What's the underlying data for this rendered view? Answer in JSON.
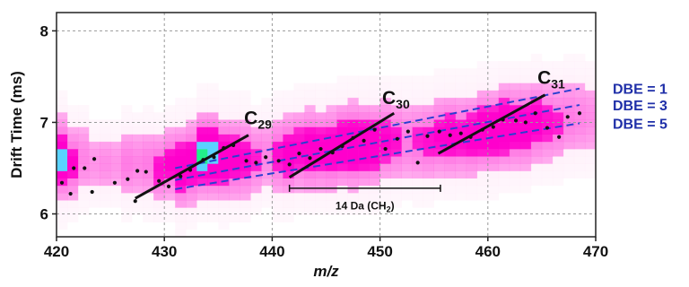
{
  "chart_data": {
    "type": "scatter",
    "title": "",
    "xlabel": "m/z",
    "ylabel": "Drift Time (ms)",
    "xlim": [
      420,
      470
    ],
    "ylim": [
      5.75,
      8.2
    ],
    "xticks": [
      420,
      430,
      440,
      450,
      460,
      470
    ],
    "yticks": [
      6,
      7,
      8
    ],
    "grid": true,
    "heatmap": {
      "description_colors": [
        "#ffe6f7",
        "#ff66e0",
        "#ff00cc",
        "#5ad2ff",
        "#22f08a"
      ],
      "columns": [
        {
          "mz": 420.5,
          "center": 6.6,
          "spread": 0.45,
          "peak": 0.9,
          "hot": 0.75
        },
        {
          "mz": 421.5,
          "center": 6.55,
          "spread": 0.4,
          "peak": 0.75
        },
        {
          "mz": 422.5,
          "center": 6.6,
          "spread": 0.4,
          "peak": 0.55
        },
        {
          "mz": 423.5,
          "center": 6.55,
          "spread": 0.35,
          "peak": 0.45
        },
        {
          "mz": 424.5,
          "center": 6.55,
          "spread": 0.35,
          "peak": 0.5
        },
        {
          "mz": 425.5,
          "center": 6.55,
          "spread": 0.35,
          "peak": 0.45
        },
        {
          "mz": 426.5,
          "center": 6.55,
          "spread": 0.4,
          "peak": 0.6
        },
        {
          "mz": 427.5,
          "center": 6.55,
          "spread": 0.4,
          "peak": 0.55
        },
        {
          "mz": 428.5,
          "center": 6.55,
          "spread": 0.4,
          "peak": 0.6
        },
        {
          "mz": 429.5,
          "center": 6.5,
          "spread": 0.4,
          "peak": 0.7
        },
        {
          "mz": 430.5,
          "center": 6.55,
          "spread": 0.4,
          "peak": 0.75
        },
        {
          "mz": 431.5,
          "center": 6.5,
          "spread": 0.45,
          "peak": 0.85
        },
        {
          "mz": 432.5,
          "center": 6.55,
          "spread": 0.45,
          "peak": 0.85
        },
        {
          "mz": 433.5,
          "center": 6.65,
          "spread": 0.45,
          "peak": 1.0,
          "hot": 1.0
        },
        {
          "mz": 434.5,
          "center": 6.65,
          "spread": 0.45,
          "peak": 1.0,
          "hot": 0.85
        },
        {
          "mz": 435.5,
          "center": 6.6,
          "spread": 0.45,
          "peak": 0.85
        },
        {
          "mz": 436.5,
          "center": 6.6,
          "spread": 0.45,
          "peak": 0.8
        },
        {
          "mz": 437.5,
          "center": 6.6,
          "spread": 0.45,
          "peak": 0.75
        },
        {
          "mz": 438.5,
          "center": 6.6,
          "spread": 0.4,
          "peak": 0.65
        },
        {
          "mz": 439.5,
          "center": 6.65,
          "spread": 0.4,
          "peak": 0.55
        },
        {
          "mz": 440.5,
          "center": 6.65,
          "spread": 0.45,
          "peak": 0.7
        },
        {
          "mz": 441.5,
          "center": 6.65,
          "spread": 0.45,
          "peak": 0.8
        },
        {
          "mz": 442.5,
          "center": 6.7,
          "spread": 0.45,
          "peak": 0.75
        },
        {
          "mz": 443.5,
          "center": 6.7,
          "spread": 0.45,
          "peak": 0.85
        },
        {
          "mz": 444.5,
          "center": 6.7,
          "spread": 0.45,
          "peak": 0.8
        },
        {
          "mz": 445.5,
          "center": 6.7,
          "spread": 0.45,
          "peak": 0.85
        },
        {
          "mz": 446.5,
          "center": 6.75,
          "spread": 0.45,
          "peak": 0.9
        },
        {
          "mz": 447.5,
          "center": 6.75,
          "spread": 0.45,
          "peak": 0.95
        },
        {
          "mz": 448.5,
          "center": 6.75,
          "spread": 0.45,
          "peak": 0.9
        },
        {
          "mz": 449.5,
          "center": 6.75,
          "spread": 0.45,
          "peak": 0.85
        },
        {
          "mz": 450.5,
          "center": 6.8,
          "spread": 0.45,
          "peak": 0.75
        },
        {
          "mz": 451.5,
          "center": 6.8,
          "spread": 0.45,
          "peak": 0.7
        },
        {
          "mz": 452.5,
          "center": 6.8,
          "spread": 0.45,
          "peak": 0.6
        },
        {
          "mz": 453.5,
          "center": 6.8,
          "spread": 0.45,
          "peak": 0.65
        },
        {
          "mz": 454.5,
          "center": 6.8,
          "spread": 0.45,
          "peak": 0.7
        },
        {
          "mz": 455.5,
          "center": 6.85,
          "spread": 0.45,
          "peak": 0.75
        },
        {
          "mz": 456.5,
          "center": 6.85,
          "spread": 0.45,
          "peak": 0.8
        },
        {
          "mz": 457.5,
          "center": 6.85,
          "spread": 0.45,
          "peak": 0.75
        },
        {
          "mz": 458.5,
          "center": 6.85,
          "spread": 0.45,
          "peak": 0.8
        },
        {
          "mz": 459.5,
          "center": 6.9,
          "spread": 0.45,
          "peak": 0.85
        },
        {
          "mz": 460.5,
          "center": 6.9,
          "spread": 0.45,
          "peak": 0.85
        },
        {
          "mz": 461.5,
          "center": 6.95,
          "spread": 0.45,
          "peak": 0.9
        },
        {
          "mz": 462.5,
          "center": 6.95,
          "spread": 0.45,
          "peak": 0.85
        },
        {
          "mz": 463.5,
          "center": 6.95,
          "spread": 0.45,
          "peak": 0.85
        },
        {
          "mz": 464.5,
          "center": 7.0,
          "spread": 0.45,
          "peak": 0.8
        },
        {
          "mz": 465.5,
          "center": 7.0,
          "spread": 0.45,
          "peak": 0.7
        },
        {
          "mz": 466.5,
          "center": 7.0,
          "spread": 0.45,
          "peak": 0.65
        },
        {
          "mz": 467.5,
          "center": 7.05,
          "spread": 0.45,
          "peak": 0.6
        },
        {
          "mz": 468.5,
          "center": 7.05,
          "spread": 0.45,
          "peak": 0.55
        },
        {
          "mz": 469.5,
          "center": 7.05,
          "spread": 0.45,
          "peak": 0.5
        }
      ]
    },
    "points": [
      {
        "x": 420.5,
        "y": 6.34
      },
      {
        "x": 421.3,
        "y": 6.22
      },
      {
        "x": 421.6,
        "y": 6.5
      },
      {
        "x": 422.6,
        "y": 6.5
      },
      {
        "x": 423.3,
        "y": 6.24
      },
      {
        "x": 423.5,
        "y": 6.6
      },
      {
        "x": 425.4,
        "y": 6.34
      },
      {
        "x": 426.6,
        "y": 6.38
      },
      {
        "x": 427.5,
        "y": 6.47
      },
      {
        "x": 428.3,
        "y": 6.46
      },
      {
        "x": 427.3,
        "y": 6.14
      },
      {
        "x": 429.5,
        "y": 6.36
      },
      {
        "x": 430.4,
        "y": 6.3
      },
      {
        "x": 431.5,
        "y": 6.41
      },
      {
        "x": 432.4,
        "y": 6.48
      },
      {
        "x": 433.6,
        "y": 6.59
      },
      {
        "x": 434.6,
        "y": 6.62
      },
      {
        "x": 435.5,
        "y": 6.72
      },
      {
        "x": 436.4,
        "y": 6.75
      },
      {
        "x": 437.6,
        "y": 6.58
      },
      {
        "x": 438.5,
        "y": 6.56
      },
      {
        "x": 439.4,
        "y": 6.62
      },
      {
        "x": 440.6,
        "y": 6.58
      },
      {
        "x": 441.6,
        "y": 6.54
      },
      {
        "x": 442.5,
        "y": 6.66
      },
      {
        "x": 443.5,
        "y": 6.61
      },
      {
        "x": 444.5,
        "y": 6.71
      },
      {
        "x": 445.6,
        "y": 6.67
      },
      {
        "x": 446.5,
        "y": 6.74
      },
      {
        "x": 447.5,
        "y": 6.83
      },
      {
        "x": 448.5,
        "y": 6.8
      },
      {
        "x": 449.5,
        "y": 6.92
      },
      {
        "x": 450.5,
        "y": 6.71
      },
      {
        "x": 451.6,
        "y": 6.82
      },
      {
        "x": 452.6,
        "y": 6.9
      },
      {
        "x": 453.5,
        "y": 6.56
      },
      {
        "x": 454.4,
        "y": 6.85
      },
      {
        "x": 455.5,
        "y": 6.9
      },
      {
        "x": 456.5,
        "y": 6.86
      },
      {
        "x": 457.5,
        "y": 6.88
      },
      {
        "x": 458.4,
        "y": 6.84
      },
      {
        "x": 459.5,
        "y": 6.92
      },
      {
        "x": 460.5,
        "y": 6.95
      },
      {
        "x": 461.4,
        "y": 7.03
      },
      {
        "x": 462.6,
        "y": 7.02
      },
      {
        "x": 463.5,
        "y": 7.0
      },
      {
        "x": 464.4,
        "y": 7.1
      },
      {
        "x": 465.5,
        "y": 6.94
      },
      {
        "x": 466.6,
        "y": 6.84
      },
      {
        "x": 467.4,
        "y": 7.06
      },
      {
        "x": 468.5,
        "y": 7.1
      }
    ],
    "trend_lines": [
      {
        "label": "C29",
        "x": [
          427.3,
          437.8
        ],
        "y": [
          6.17,
          6.86
        ]
      },
      {
        "label": "C30",
        "x": [
          441.6,
          451.3
        ],
        "y": [
          6.4,
          7.1
        ]
      },
      {
        "label": "C31",
        "x": [
          455.4,
          465.3
        ],
        "y": [
          6.66,
          7.3
        ]
      }
    ],
    "dbe_lines": [
      {
        "label": "DBE = 1",
        "x": [
          431.0,
          468.5
        ],
        "y": [
          6.5,
          7.37
        ]
      },
      {
        "label": "DBE = 3",
        "x": [
          431.0,
          468.5
        ],
        "y": [
          6.37,
          7.19
        ]
      },
      {
        "label": "DBE = 5",
        "x": [
          431.0,
          468.5
        ],
        "y": [
          6.27,
          6.99
        ]
      }
    ],
    "series_labels": [
      {
        "base": "C",
        "sub": "29",
        "x": 437.4,
        "y": 6.98
      },
      {
        "base": "C",
        "sub": "30",
        "x": 450.2,
        "y": 7.2
      },
      {
        "base": "C",
        "sub": "31",
        "x": 464.6,
        "y": 7.42
      }
    ],
    "span": {
      "x1": 441.6,
      "x2": 455.6,
      "y": 6.28,
      "label": "14 Da (CH",
      "sub": "2",
      "tail": ")",
      "label_y": 6.05
    }
  }
}
